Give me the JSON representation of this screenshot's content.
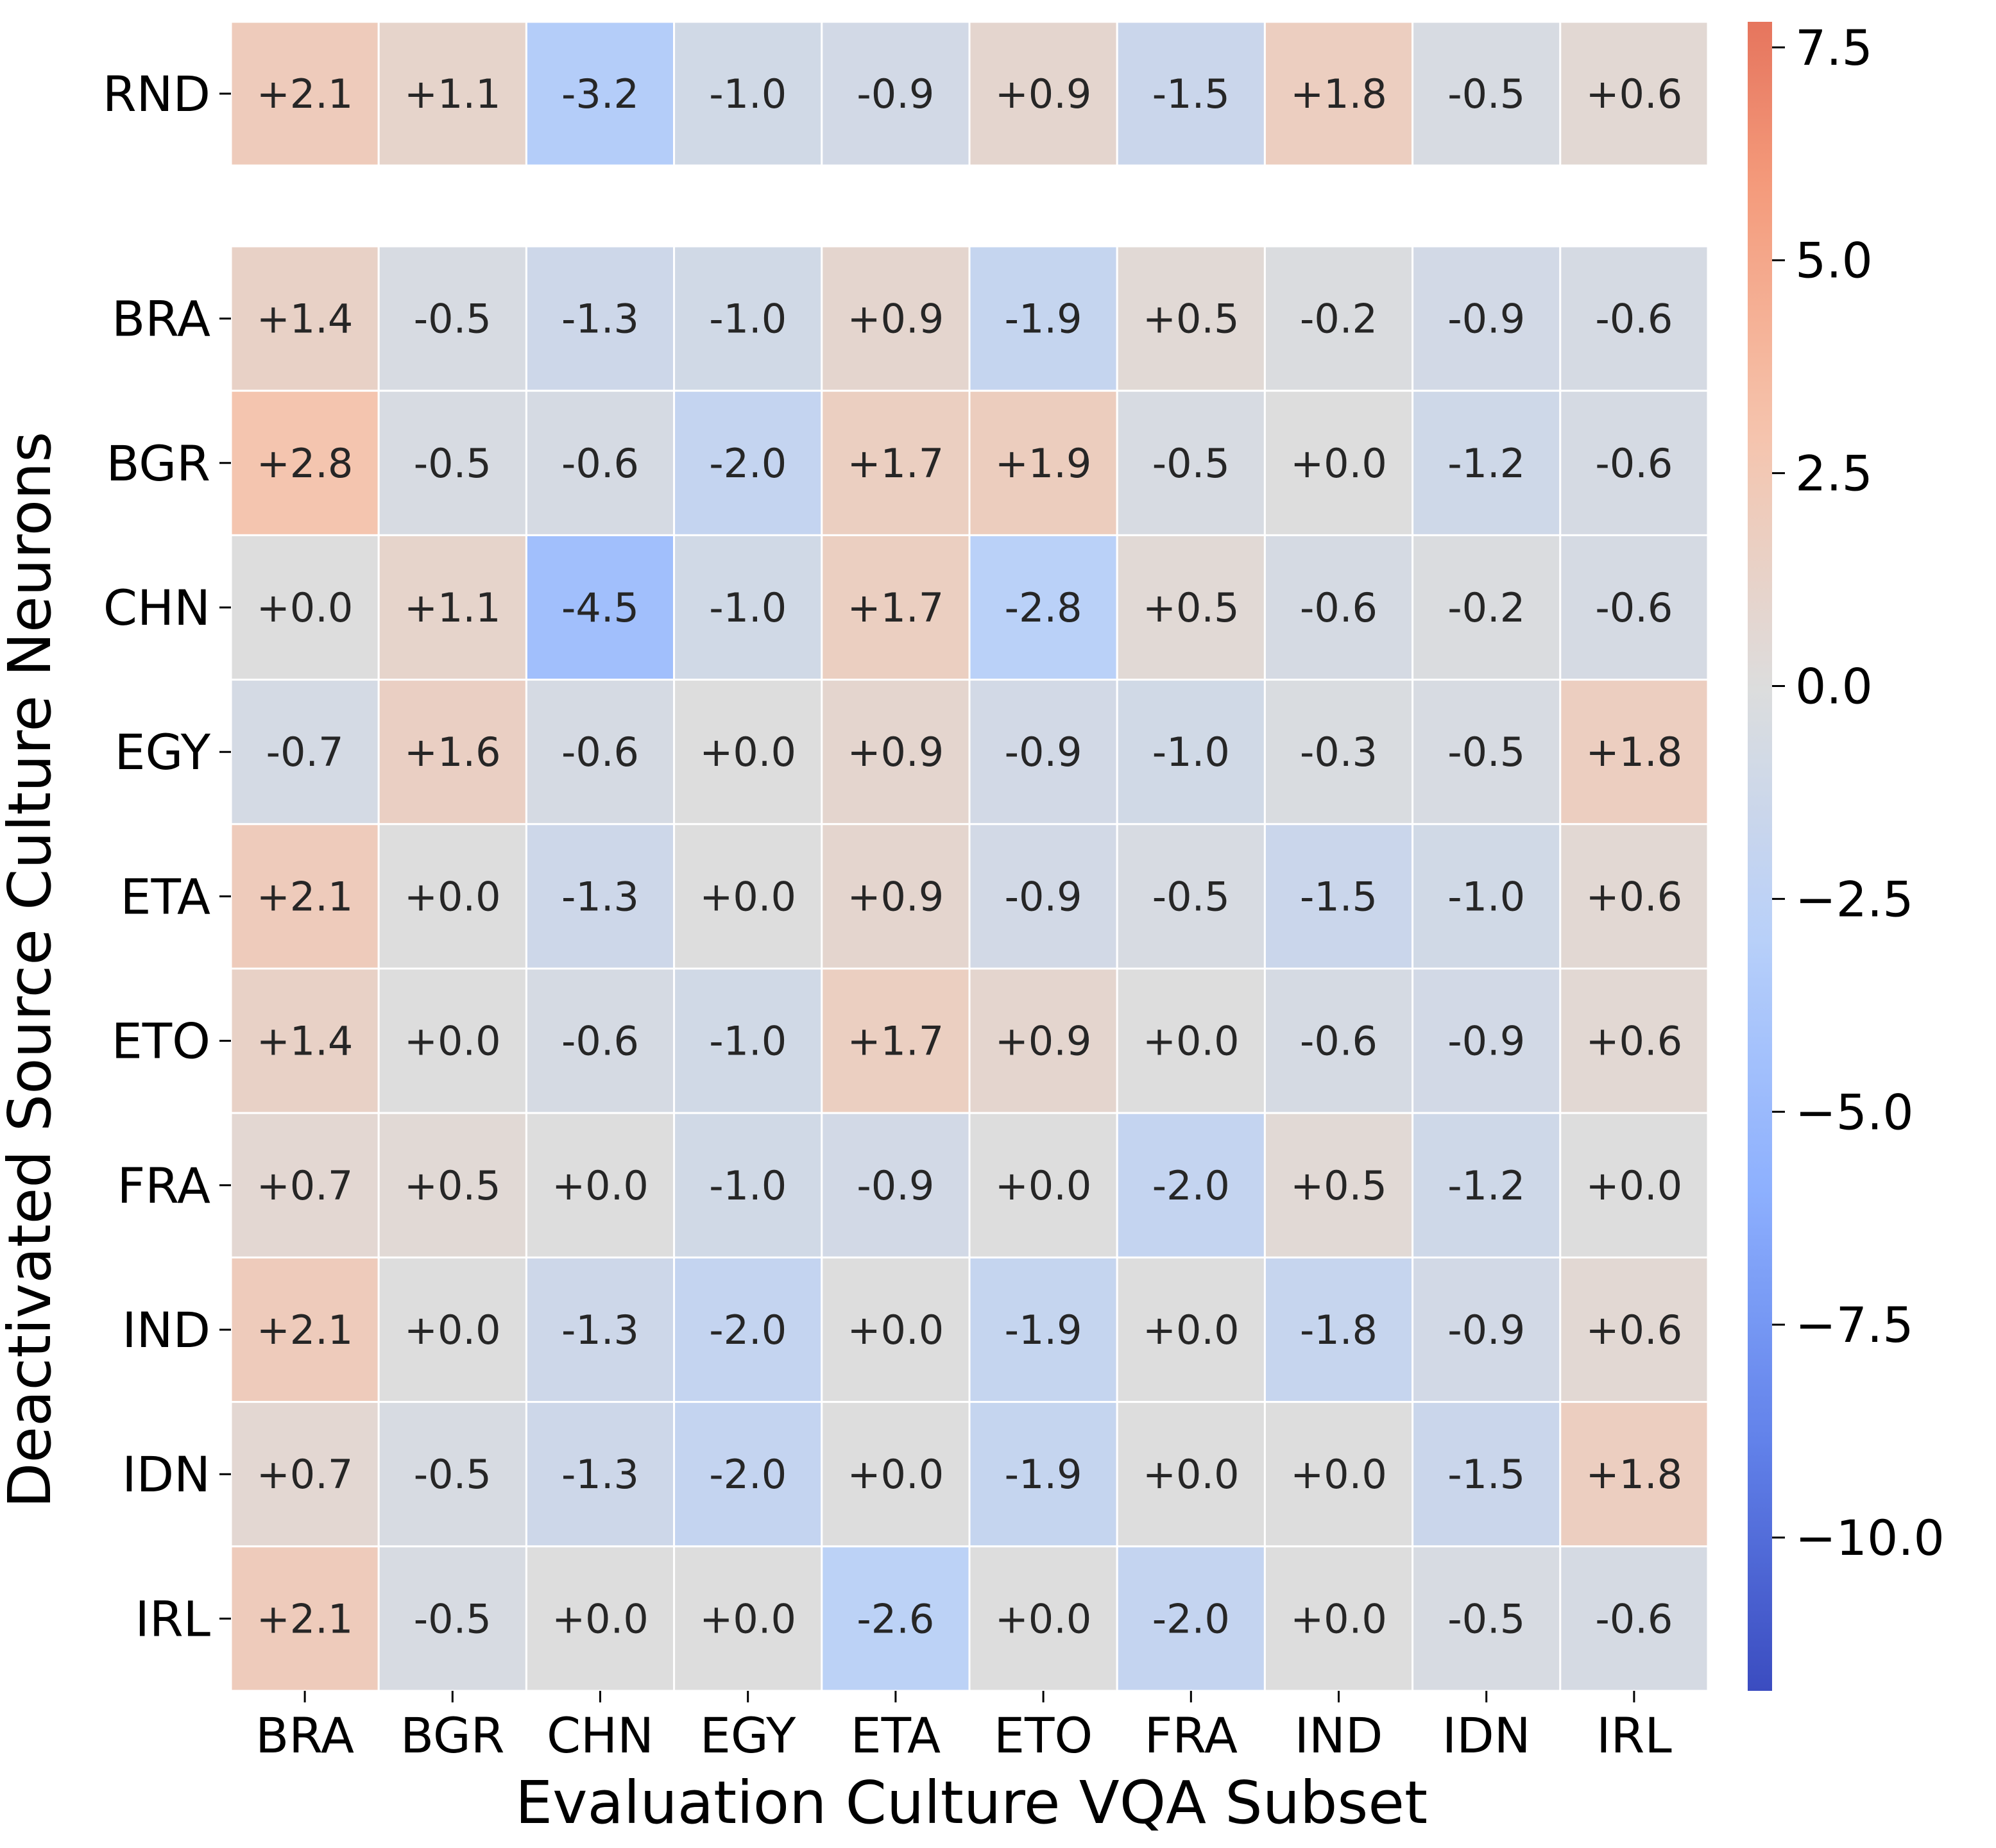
{
  "chart_data": {
    "type": "heatmap",
    "xlabel": "Evaluation Culture VQA Subset",
    "ylabel": "Deactivated Source Culture Neurons",
    "x_categories": [
      "BRA",
      "BGR",
      "CHN",
      "EGY",
      "ETA",
      "ETO",
      "FRA",
      "IND",
      "IDN",
      "IRL"
    ],
    "top_row": {
      "label": "RND",
      "values": [
        2.1,
        1.1,
        -3.2,
        -1.0,
        -0.9,
        0.9,
        -1.5,
        1.8,
        -0.5,
        0.6
      ]
    },
    "y_categories": [
      "BRA",
      "BGR",
      "CHN",
      "EGY",
      "ETA",
      "ETO",
      "FRA",
      "IND",
      "IDN",
      "IRL"
    ],
    "values": [
      [
        1.4,
        -0.5,
        -1.3,
        -1.0,
        0.9,
        -1.9,
        0.5,
        -0.2,
        -0.9,
        -0.6
      ],
      [
        2.8,
        -0.5,
        -0.6,
        -2.0,
        1.7,
        1.9,
        -0.5,
        0.0,
        -1.2,
        -0.6
      ],
      [
        0.0,
        1.1,
        -4.5,
        -1.0,
        1.7,
        -2.8,
        0.5,
        -0.6,
        -0.2,
        -0.6
      ],
      [
        -0.7,
        1.6,
        -0.6,
        0.0,
        0.9,
        -0.9,
        -1.0,
        -0.3,
        -0.5,
        1.8
      ],
      [
        2.1,
        0.0,
        -1.3,
        0.0,
        0.9,
        -0.9,
        -0.5,
        -1.5,
        -1.0,
        0.6
      ],
      [
        1.4,
        0.0,
        -0.6,
        -1.0,
        1.7,
        0.9,
        0.0,
        -0.6,
        -0.9,
        0.6
      ],
      [
        0.7,
        0.5,
        0.0,
        -1.0,
        -0.9,
        0.0,
        -2.0,
        0.5,
        -1.2,
        0.0
      ],
      [
        2.1,
        0.0,
        -1.3,
        -2.0,
        0.0,
        -1.9,
        0.0,
        -1.8,
        -0.9,
        0.6
      ],
      [
        0.7,
        -0.5,
        -1.3,
        -2.0,
        0.0,
        -1.9,
        0.0,
        0.0,
        -1.5,
        1.8
      ],
      [
        2.1,
        -0.5,
        0.0,
        0.0,
        -2.6,
        0.0,
        -2.0,
        0.0,
        -0.5,
        -0.6
      ]
    ],
    "colorbar": {
      "min": -11.8,
      "max": 7.8,
      "center": 0.0,
      "ticks": [
        7.5,
        5.0,
        2.5,
        0.0,
        -2.5,
        -5.0,
        -7.5,
        -10.0
      ],
      "tick_labels": [
        "7.5",
        "5.0",
        "2.5",
        "0.0",
        "−2.5",
        "−5.0",
        "−7.5",
        "−10.0"
      ]
    },
    "colormap": "coolwarm",
    "cell_text_color": "#262626",
    "grid_line_color": "#ffffff"
  }
}
